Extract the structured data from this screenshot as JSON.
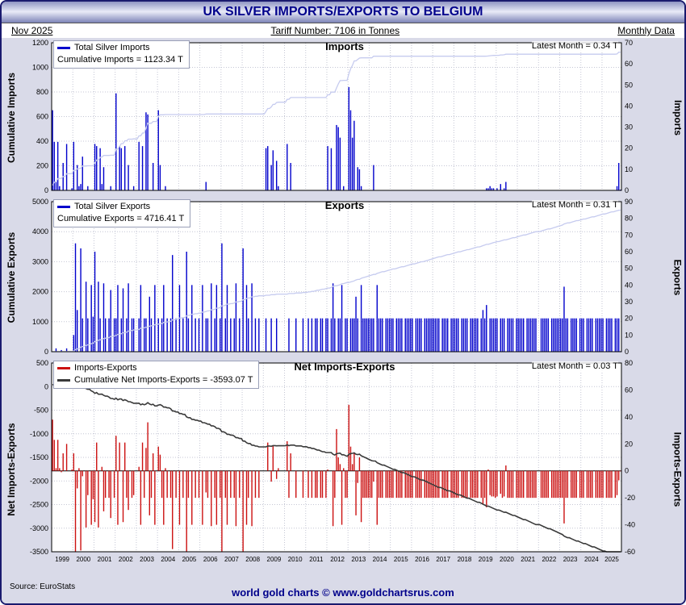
{
  "header": {
    "title": "UK SILVER IMPORTS/EXPORTS TO BELGIUM",
    "date": "Nov 2025",
    "tariff": "Tariff Number: 7106 in Tonnes",
    "frequency": "Monthly Data"
  },
  "footer": {
    "source": "Source: EuroStats",
    "brand": "world gold charts © www.goldchartsrus.com"
  },
  "colors": {
    "accent_navy": "#00008b",
    "bar_blue": "#0000cc",
    "bar_red": "#cc1111",
    "cumulative_light": "#c6cbef",
    "cumulative_dark": "#3a3a3a",
    "panel_background": "#d9dae8"
  },
  "chart_data": [
    {
      "type": "bar",
      "title": "Imports",
      "legend_series": "Total Silver Imports",
      "legend_cumulative": "Cumulative Imports = 1123.34 T",
      "latest": "Latest Month = 0.34 T",
      "left_axis": {
        "label": "Cumulative Imports",
        "min": 0,
        "max": 1200,
        "step": 200
      },
      "right_axis": {
        "label": "Imports",
        "min": 0,
        "max": 70,
        "step": 10
      },
      "bar_color": "#0000cc",
      "line_color": "#c6cbef",
      "line_width": 1.3,
      "cumulative_total": 1123.34,
      "start_year": 1999,
      "monthly": [
        [
          38,
          23,
          4,
          23,
          2,
          0,
          13,
          0,
          22,
          0,
          0,
          1
        ],
        [
          23,
          0,
          12,
          2,
          3,
          16,
          0,
          0,
          2,
          0,
          0,
          0
        ],
        [
          22,
          21,
          0,
          20,
          3,
          11,
          0,
          0,
          0,
          2,
          0,
          0
        ],
        [
          46,
          0,
          21,
          20,
          0,
          21,
          0,
          12,
          0,
          0,
          2,
          0
        ],
        [
          0,
          23,
          0,
          21,
          0,
          37,
          36,
          0,
          0,
          13,
          0,
          0
        ],
        [
          38,
          12,
          0,
          0,
          2,
          0,
          0,
          0,
          0,
          0,
          0,
          0
        ],
        [
          0,
          0,
          0,
          0,
          0,
          0,
          0,
          0,
          0,
          0,
          0,
          0
        ],
        [
          0,
          0,
          0,
          4,
          0,
          0,
          0,
          0,
          0,
          0,
          0,
          0
        ],
        [
          0,
          0,
          0,
          0,
          0,
          0,
          0,
          0,
          0,
          0,
          0,
          0
        ],
        [
          0,
          0,
          0,
          0,
          0,
          0,
          0,
          0,
          0,
          0,
          0,
          0
        ],
        [
          0,
          20,
          21,
          0,
          12,
          19,
          0,
          14,
          2,
          0,
          0,
          0
        ],
        [
          0,
          22,
          0,
          13,
          0,
          0,
          0,
          0,
          0,
          0,
          0,
          0
        ],
        [
          0,
          0,
          0,
          0,
          0,
          0,
          0,
          0,
          0,
          0,
          0,
          0
        ],
        [
          21,
          0,
          20,
          0,
          0,
          31,
          30,
          25,
          0,
          2,
          0,
          0
        ],
        [
          49,
          38,
          25,
          33,
          0,
          11,
          10,
          2,
          0,
          0,
          0,
          0
        ],
        [
          0,
          0,
          12,
          0,
          0,
          0,
          0,
          0,
          0,
          0,
          0,
          0
        ],
        [
          0,
          0,
          0,
          0,
          0,
          0,
          0,
          0,
          0,
          0,
          0,
          0
        ],
        [
          0,
          0,
          0,
          0,
          0,
          0,
          0,
          0,
          0,
          0,
          0,
          0
        ],
        [
          0,
          0,
          0,
          0,
          0,
          0,
          0,
          0,
          0,
          0,
          0,
          0
        ],
        [
          0,
          0,
          0,
          0,
          0,
          0,
          0,
          0,
          0,
          0,
          0,
          0
        ],
        [
          0,
          0,
          0,
          0,
          0,
          0,
          1,
          1,
          2,
          1,
          1,
          0
        ],
        [
          1,
          0,
          3,
          0,
          1,
          4,
          0,
          0,
          0,
          0,
          0,
          0
        ],
        [
          0,
          0,
          0,
          0,
          0,
          0,
          0,
          0,
          0,
          0,
          0,
          0
        ],
        [
          0,
          0,
          0,
          0,
          0,
          0,
          0,
          0,
          0,
          0,
          0,
          0
        ],
        [
          0,
          0,
          0,
          0,
          0,
          0,
          0,
          0,
          0,
          0,
          0,
          0
        ],
        [
          0,
          0,
          0,
          0,
          0,
          0,
          0,
          0,
          0,
          0,
          0,
          0
        ],
        [
          0,
          0,
          0,
          0,
          0,
          0,
          0,
          0,
          2,
          13,
          0.34
        ]
      ]
    },
    {
      "type": "bar",
      "title": "Exports",
      "legend_series": "Total Silver Exports",
      "legend_cumulative": "Cumulative Exports = 4716.41 T",
      "latest": "Latest Month = 0.31 T",
      "left_axis": {
        "label": "Cumulative Exports",
        "min": 0,
        "max": 5000,
        "step": 1000
      },
      "right_axis": {
        "label": "Exports",
        "min": 0,
        "max": 90,
        "step": 10
      },
      "bar_color": "#0000cc",
      "line_color": "#c6cbef",
      "line_width": 1.3,
      "cumulative_total": 4716.41,
      "start_year": 1999,
      "monthly": [
        [
          0,
          0,
          2,
          0,
          0,
          1,
          0,
          0,
          2,
          0,
          0,
          0
        ],
        [
          10,
          65,
          25,
          0,
          62,
          20,
          0,
          42,
          20,
          0,
          40,
          21
        ],
        [
          60,
          0,
          42,
          20,
          0,
          41,
          20,
          0,
          20,
          37,
          0,
          20
        ],
        [
          20,
          40,
          0,
          20,
          38,
          0,
          20,
          41,
          0,
          20,
          20,
          0
        ],
        [
          0,
          20,
          40,
          0,
          20,
          20,
          0,
          33,
          20,
          0,
          40,
          0
        ],
        [
          20,
          0,
          20,
          40,
          0,
          20,
          0,
          20,
          58,
          0,
          20,
          0
        ],
        [
          40,
          0,
          20,
          0,
          60,
          20,
          0,
          40,
          0,
          20,
          0,
          20
        ],
        [
          0,
          40,
          0,
          20,
          20,
          0,
          41,
          0,
          20,
          40,
          0,
          20
        ],
        [
          65,
          0,
          20,
          40,
          0,
          20,
          0,
          20,
          41,
          0,
          20,
          0
        ],
        [
          62,
          0,
          40,
          20,
          0,
          41,
          0,
          20,
          0,
          20,
          0,
          0
        ],
        [
          0,
          20,
          0,
          0,
          20,
          0,
          0,
          20,
          0,
          0,
          0,
          0
        ],
        [
          0,
          0,
          20,
          0,
          0,
          0,
          20,
          0,
          0,
          0,
          20,
          0
        ],
        [
          0,
          20,
          0,
          20,
          0,
          20,
          20,
          0,
          20,
          20,
          0,
          20
        ],
        [
          20,
          0,
          20,
          41,
          20,
          0,
          20,
          20,
          40,
          0,
          20,
          20
        ],
        [
          0,
          20,
          20,
          20,
          33,
          20,
          0,
          40,
          20,
          20,
          20,
          20
        ],
        [
          20,
          20,
          20,
          0,
          40,
          20,
          20,
          20,
          0,
          20,
          20,
          20
        ],
        [
          20,
          20,
          0,
          20,
          20,
          20,
          20,
          0,
          20,
          20,
          20,
          20
        ],
        [
          20,
          0,
          20,
          20,
          20,
          20,
          0,
          20,
          20,
          20,
          20,
          20
        ],
        [
          20,
          20,
          20,
          20,
          0,
          20,
          20,
          20,
          20,
          0,
          20,
          20
        ],
        [
          20,
          20,
          20,
          0,
          20,
          20,
          20,
          20,
          0,
          20,
          20,
          20
        ],
        [
          20,
          20,
          0,
          20,
          25,
          20,
          28,
          0,
          20,
          20,
          20,
          20
        ],
        [
          20,
          0,
          20,
          20,
          20,
          0,
          20,
          20,
          20,
          20,
          0,
          20
        ],
        [
          20,
          20,
          20,
          20,
          0,
          20,
          20,
          20,
          20,
          20,
          20,
          0
        ],
        [
          0,
          20,
          20,
          20,
          20,
          20,
          0,
          20,
          20,
          20,
          20,
          20
        ],
        [
          20,
          20,
          39,
          20,
          20,
          0,
          20,
          20,
          20,
          20,
          0,
          20
        ],
        [
          20,
          20,
          0,
          20,
          20,
          20,
          20,
          0,
          20,
          20,
          20,
          20
        ],
        [
          20,
          0,
          20,
          20,
          20,
          20,
          0,
          20,
          20,
          20,
          0.31
        ]
      ]
    },
    {
      "type": "bar",
      "title": "Net Imports-Exports",
      "legend_series": "Imports-Exports",
      "legend_cumulative": "Cumulative Net Imports-Exports = -3593.07 T",
      "latest": "Latest Month = 0.03 T",
      "left_axis": {
        "label": "Net Imports-Exports",
        "min": -3500,
        "max": 500,
        "step": 500
      },
      "right_axis": {
        "label": "Imports-Exports",
        "min": -60,
        "max": 80,
        "step": 20
      },
      "bar_color": "#cc1111",
      "line_color": "#3a3a3a",
      "line_width": 1.6,
      "cumulative_total": -3593.07,
      "derived": "panel0_monthly_minus_panel1_monthly",
      "x_years": [
        1999,
        2000,
        2001,
        2002,
        2003,
        2004,
        2005,
        2006,
        2007,
        2008,
        2009,
        2010,
        2011,
        2012,
        2013,
        2014,
        2015,
        2016,
        2017,
        2018,
        2019,
        2020,
        2021,
        2022,
        2023,
        2024,
        2025
      ]
    }
  ]
}
